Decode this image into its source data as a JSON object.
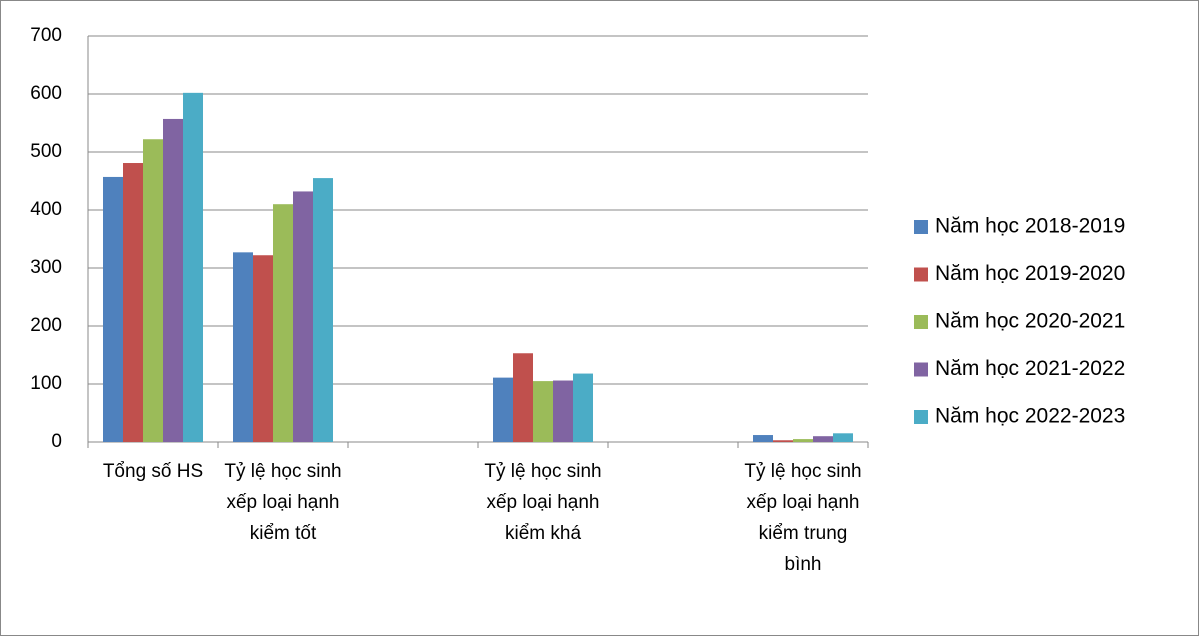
{
  "chart_data": {
    "type": "bar",
    "categories": [
      "Tổng số HS",
      "Tỷ lệ học sinh xếp loại hạnh kiểm tốt",
      null,
      "Tỷ lệ học sinh xếp loại hạnh kiểm khá",
      null,
      "Tỷ lệ học sinh xếp loại hạnh kiểm trung bình"
    ],
    "series": [
      {
        "name": "Năm học 2018-2019",
        "color": "#4f81bd",
        "values": [
          457,
          327,
          null,
          111,
          null,
          12
        ]
      },
      {
        "name": "Năm học 2019-2020",
        "color": "#c0504d",
        "values": [
          481,
          322,
          null,
          153,
          null,
          3
        ]
      },
      {
        "name": "Năm học 2020-2021",
        "color": "#9bbb59",
        "values": [
          522,
          410,
          null,
          105,
          null,
          5
        ]
      },
      {
        "name": "Năm học 2021-2022",
        "color": "#8064a2",
        "values": [
          557,
          432,
          null,
          106,
          null,
          10
        ]
      },
      {
        "name": "Năm học 2022-2023",
        "color": "#4bacc6",
        "values": [
          602,
          455,
          null,
          118,
          null,
          15
        ]
      }
    ],
    "ylim": [
      0,
      700
    ],
    "yticks": [
      0,
      100,
      200,
      300,
      400,
      500,
      600,
      700
    ],
    "grid": true,
    "legend": "right"
  }
}
